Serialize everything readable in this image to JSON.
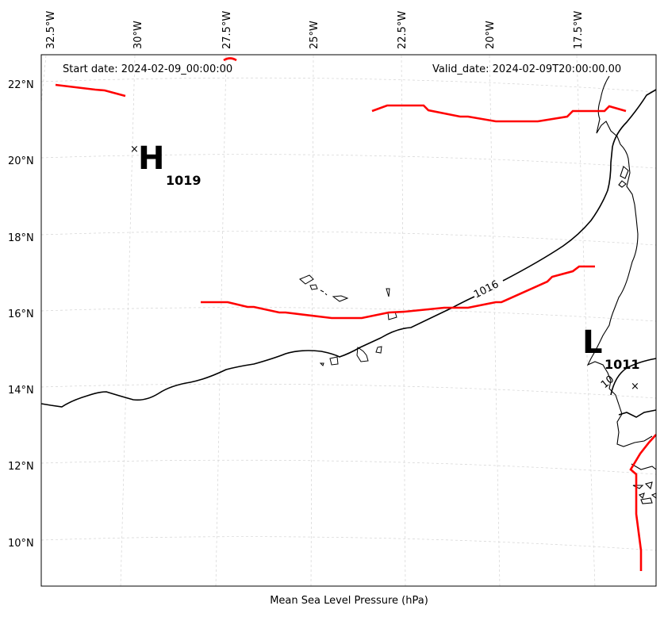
{
  "map": {
    "start_date": "Start date: 2024-02-09_00:00:00",
    "valid_date": "Valid_date: 2024-02-09T20:00:00.00",
    "caption": "Mean Sea Level Pressure (hPa)",
    "longitude_ticks": [
      "32.5°W",
      "30°W",
      "27.5°W",
      "25°W",
      "22.5°W",
      "20°W",
      "17.5°W"
    ],
    "latitude_ticks": [
      "22°N",
      "20°N",
      "18°N",
      "16°N",
      "14°N",
      "12°N",
      "10°N"
    ],
    "isobar_label": "1016",
    "isobar_label_small": "10",
    "high": {
      "symbol": "H",
      "value": "1019",
      "marker": "×"
    },
    "low": {
      "symbol": "L",
      "value": "1011",
      "marker": "×"
    },
    "colors": {
      "isobar": "#000000",
      "front": "#ff0000",
      "coast": "#000000",
      "grid": "#d9d9d9"
    }
  }
}
